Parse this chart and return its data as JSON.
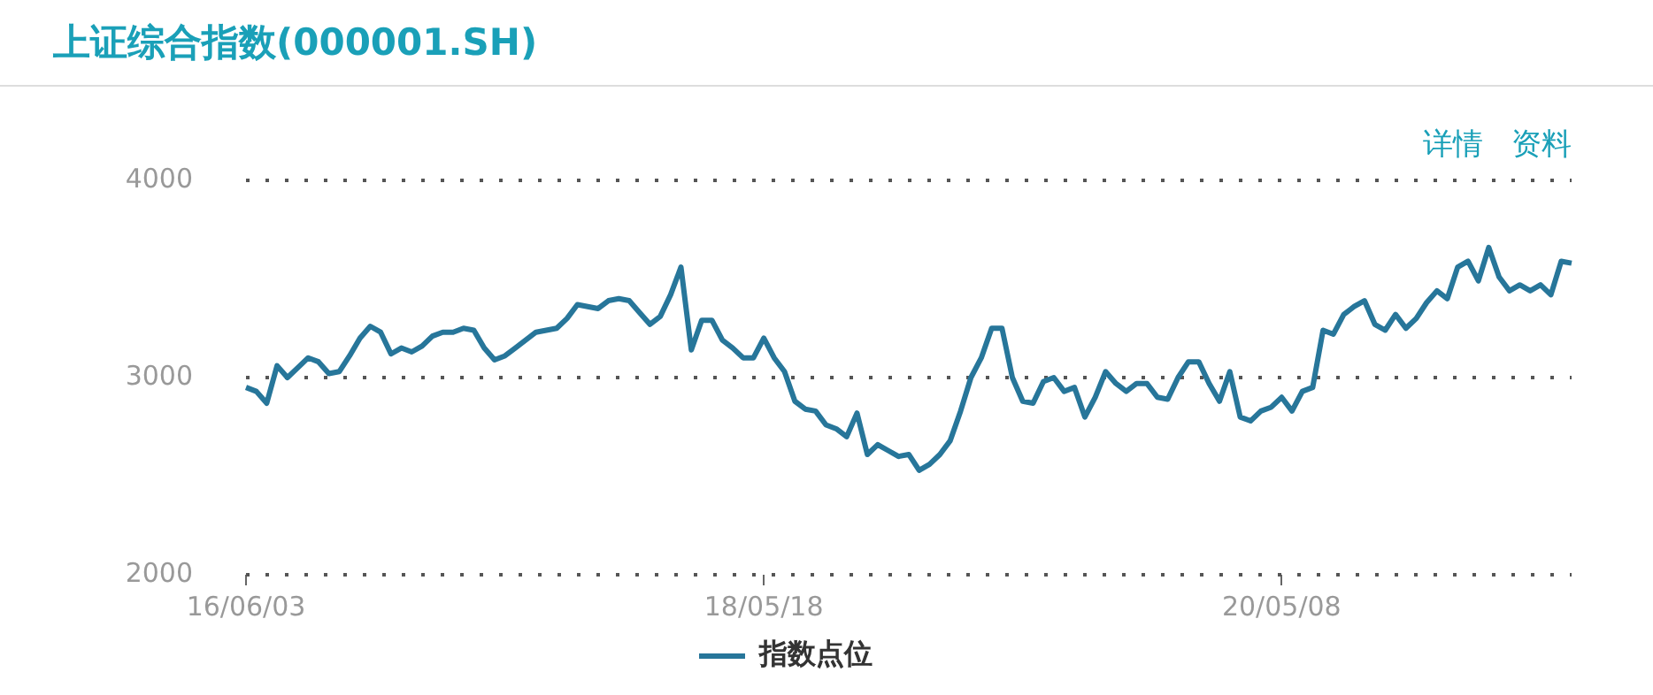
{
  "chart_data": {
    "type": "line",
    "title": "上证综合指数(000001.SH)",
    "annotations": [
      "详情",
      "资料"
    ],
    "categories": [
      "16/06/03",
      null,
      null,
      null,
      null,
      null,
      null,
      null,
      null,
      null,
      null,
      null,
      null,
      null,
      null,
      null,
      null,
      null,
      null,
      null,
      null,
      null,
      null,
      null,
      null,
      null,
      null,
      null,
      null,
      null,
      null,
      null,
      null,
      null,
      null,
      null,
      null,
      null,
      null,
      null,
      null,
      null,
      null,
      null,
      null,
      null,
      null,
      null,
      null,
      null,
      "18/05/18",
      null,
      null,
      null,
      null,
      null,
      null,
      null,
      null,
      null,
      null,
      null,
      null,
      null,
      null,
      null,
      null,
      null,
      null,
      null,
      null,
      null,
      null,
      null,
      null,
      null,
      null,
      null,
      null,
      null,
      null,
      null,
      null,
      null,
      null,
      null,
      null,
      null,
      null,
      null,
      null,
      null,
      null,
      null,
      null,
      null,
      null,
      null,
      null,
      null,
      "20/05/08",
      null,
      null,
      null,
      null,
      null,
      null,
      null,
      null,
      null,
      null,
      null,
      null,
      null,
      null,
      null,
      null,
      null,
      null,
      null,
      null,
      null,
      null,
      null,
      null,
      null,
      null,
      null,
      null
    ],
    "series": [
      {
        "name": "指数点位",
        "color": "#27769a",
        "values": [
          2950,
          2930,
          2870,
          3060,
          3000,
          3050,
          3100,
          3080,
          3020,
          3030,
          3110,
          3200,
          3260,
          3230,
          3120,
          3150,
          3130,
          3160,
          3210,
          3230,
          3230,
          3250,
          3240,
          3150,
          3090,
          3110,
          3150,
          3190,
          3230,
          3240,
          3250,
          3300,
          3370,
          3360,
          3350,
          3390,
          3400,
          3390,
          3330,
          3270,
          3310,
          3420,
          3560,
          3140,
          3290,
          3290,
          3190,
          3150,
          3100,
          3100,
          3200,
          3100,
          3030,
          2880,
          2840,
          2830,
          2760,
          2740,
          2700,
          2820,
          2610,
          2660,
          2630,
          2600,
          2610,
          2530,
          2560,
          2610,
          2680,
          2830,
          3000,
          3100,
          3250,
          3250,
          3000,
          2880,
          2870,
          2980,
          3000,
          2930,
          2950,
          2800,
          2900,
          3030,
          2970,
          2930,
          2970,
          2970,
          2900,
          2890,
          3000,
          3080,
          3080,
          2970,
          2880,
          3030,
          2800,
          2780,
          2830,
          2850,
          2900,
          2830,
          2930,
          2950,
          3240,
          3220,
          3320,
          3360,
          3390,
          3270,
          3240,
          3320,
          3250,
          3300,
          3380,
          3440,
          3400,
          3560,
          3590,
          3490,
          3660,
          3510,
          3440,
          3470,
          3440,
          3470,
          3420,
          3590,
          3580
        ]
      }
    ],
    "ylim": [
      2000,
      4000
    ],
    "yticks": [
      2000,
      3000,
      4000
    ],
    "grid": "y",
    "legend": "bottom",
    "marker": "none",
    "line_style": "solid"
  }
}
